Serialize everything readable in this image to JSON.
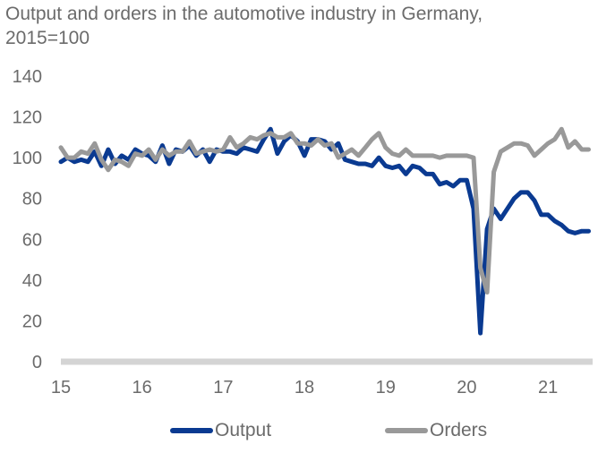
{
  "chart_data": {
    "type": "line",
    "title": "Output and orders in the automotive industry in Germany, 2015=100",
    "xlabel": "",
    "ylabel": "",
    "ylim": [
      0,
      140
    ],
    "xlim": [
      15,
      21.55
    ],
    "yticks": [
      "0",
      "20",
      "40",
      "60",
      "80",
      "100",
      "120",
      "140"
    ],
    "xticks": [
      "15",
      "16",
      "17",
      "18",
      "19",
      "20",
      "21"
    ],
    "grid": false,
    "legend_position": "bottom",
    "series": [
      {
        "name": "Output",
        "color": "#0a3a91",
        "x": [
          15.0,
          15.083,
          15.167,
          15.25,
          15.333,
          15.417,
          15.5,
          15.583,
          15.667,
          15.75,
          15.833,
          15.917,
          16.0,
          16.083,
          16.167,
          16.25,
          16.333,
          16.417,
          16.5,
          16.583,
          16.667,
          16.75,
          16.833,
          16.917,
          17.0,
          17.083,
          17.167,
          17.25,
          17.333,
          17.417,
          17.5,
          17.583,
          17.667,
          17.75,
          17.833,
          17.917,
          18.0,
          18.083,
          18.167,
          18.25,
          18.333,
          18.417,
          18.5,
          18.583,
          18.667,
          18.75,
          18.833,
          18.917,
          19.0,
          19.083,
          19.167,
          19.25,
          19.333,
          19.417,
          19.5,
          19.583,
          19.667,
          19.75,
          19.833,
          19.917,
          20.0,
          20.083,
          20.167,
          20.25,
          20.333,
          20.417,
          20.5,
          20.583,
          20.667,
          20.75,
          20.833,
          20.917,
          21.0,
          21.083,
          21.167,
          21.25,
          21.333,
          21.417,
          21.5
        ],
        "values": [
          98,
          100,
          98,
          99,
          98,
          103,
          96,
          104,
          97,
          101,
          99,
          104,
          102,
          101,
          98,
          106,
          97,
          104,
          103,
          106,
          101,
          104,
          98,
          104,
          103,
          103,
          102,
          105,
          104,
          103,
          109,
          114,
          102,
          108,
          111,
          108,
          101,
          109,
          109,
          108,
          104,
          107,
          99,
          98,
          97,
          97,
          96,
          100,
          96,
          95,
          96,
          92,
          96,
          95,
          92,
          92,
          87,
          88,
          86,
          89,
          89,
          75,
          14,
          65,
          75,
          70,
          75,
          80,
          83,
          83,
          79,
          72,
          72,
          69,
          67,
          64,
          63,
          64,
          64
        ]
      },
      {
        "name": "Orders",
        "color": "#999999",
        "x": [
          15.0,
          15.083,
          15.167,
          15.25,
          15.333,
          15.417,
          15.5,
          15.583,
          15.667,
          15.75,
          15.833,
          15.917,
          16.0,
          16.083,
          16.167,
          16.25,
          16.333,
          16.417,
          16.5,
          16.583,
          16.667,
          16.75,
          16.833,
          16.917,
          17.0,
          17.083,
          17.167,
          17.25,
          17.333,
          17.417,
          17.5,
          17.583,
          17.667,
          17.75,
          17.833,
          17.917,
          18.0,
          18.083,
          18.167,
          18.25,
          18.333,
          18.417,
          18.5,
          18.583,
          18.667,
          18.75,
          18.833,
          18.917,
          19.0,
          19.083,
          19.167,
          19.25,
          19.333,
          19.417,
          19.5,
          19.583,
          19.667,
          19.75,
          19.833,
          19.917,
          20.0,
          20.083,
          20.167,
          20.25,
          20.333,
          20.417,
          20.5,
          20.583,
          20.667,
          20.75,
          20.833,
          20.917,
          21.0,
          21.083,
          21.167,
          21.25,
          21.333,
          21.417,
          21.5
        ],
        "values": [
          105,
          100,
          100,
          103,
          102,
          107,
          99,
          94,
          99,
          98,
          96,
          102,
          101,
          104,
          99,
          104,
          101,
          103,
          103,
          108,
          102,
          103,
          104,
          103,
          104,
          110,
          105,
          107,
          110,
          109,
          111,
          112,
          110,
          110,
          112,
          107,
          107,
          106,
          109,
          106,
          107,
          100,
          102,
          104,
          101,
          105,
          109,
          112,
          105,
          102,
          101,
          104,
          101,
          101,
          101,
          101,
          100,
          101,
          101,
          101,
          101,
          100,
          46,
          34,
          93,
          103,
          105,
          107,
          107,
          106,
          101,
          104,
          107,
          109,
          114,
          105,
          108,
          104,
          104
        ]
      }
    ]
  }
}
